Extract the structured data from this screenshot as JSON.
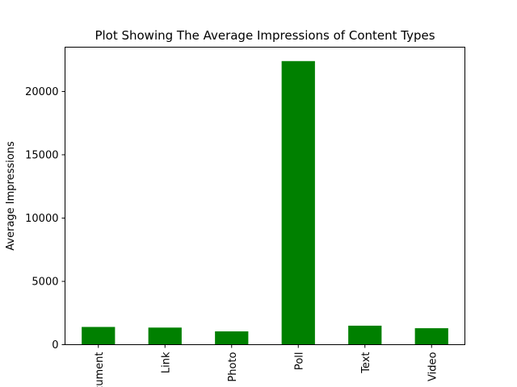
{
  "chart_data": {
    "type": "bar",
    "title": "Plot Showing The Average Impressions of Content Types",
    "xlabel": "",
    "ylabel": "Average Impressions",
    "categories": [
      "Document",
      "Link",
      "Photo",
      "Poll",
      "Text",
      "Video"
    ],
    "values": [
      1400,
      1350,
      1050,
      22400,
      1500,
      1300
    ],
    "ylim": [
      0,
      23500
    ],
    "yticks": [
      0,
      5000,
      10000,
      15000,
      20000
    ],
    "grid": false,
    "legend": "none",
    "bar_color": "#008000"
  }
}
